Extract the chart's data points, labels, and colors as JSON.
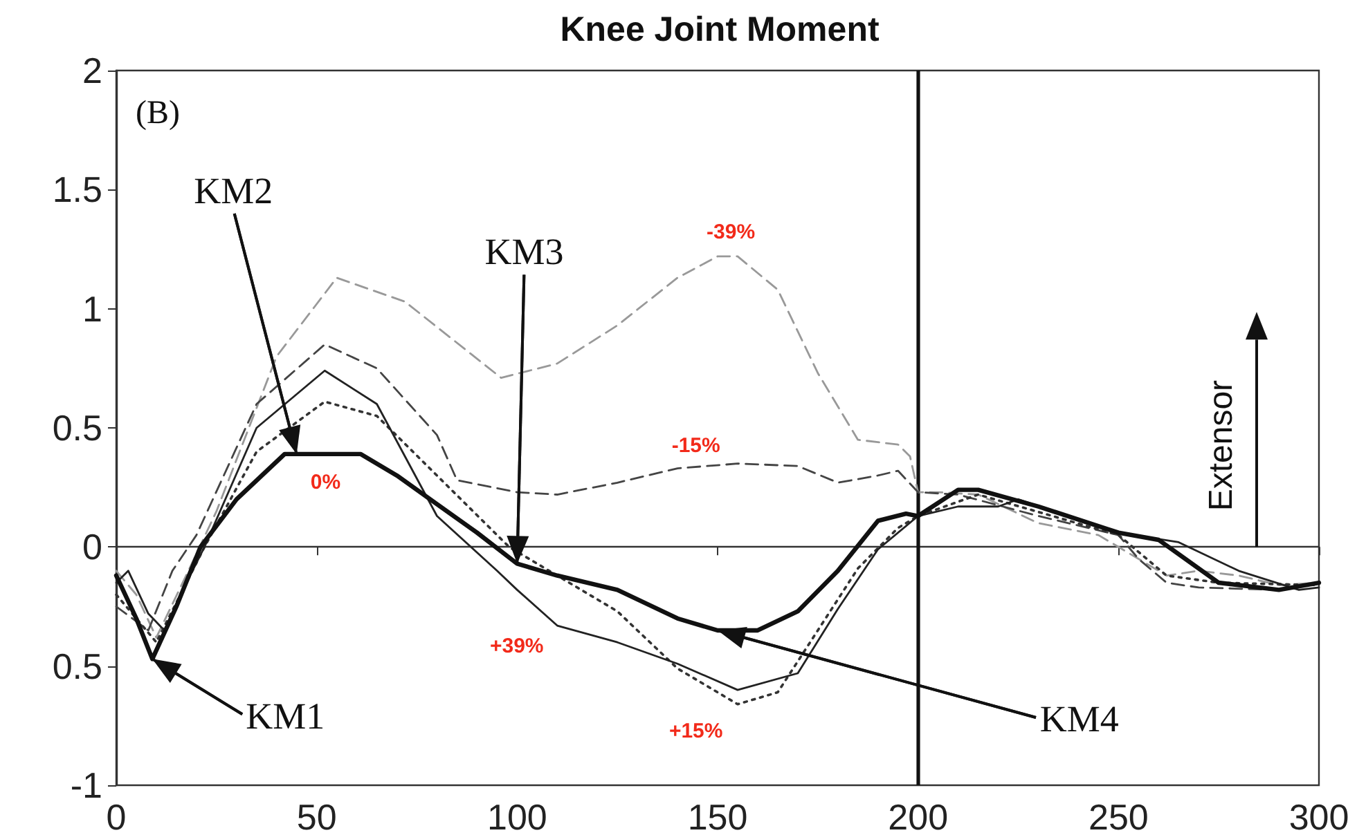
{
  "chart_data": {
    "type": "line",
    "title": "Knee Joint Moment",
    "x": [
      0,
      5,
      9,
      15,
      21,
      30,
      42,
      50,
      61,
      70,
      80,
      90,
      100,
      110,
      125,
      140,
      150,
      160,
      170,
      180,
      190,
      197,
      200,
      210,
      215,
      230,
      250,
      260,
      265,
      275,
      290,
      300
    ],
    "series": [
      {
        "color": "#111111",
        "line_style": "solid",
        "values": [
          -0.12,
          -0.3,
          -0.47,
          -0.25,
          0,
          0.2,
          0.39,
          0.39,
          0.39,
          0.3,
          0.18,
          0.06,
          -0.07,
          -0.12,
          -0.18,
          -0.3,
          -0.35,
          -0.35,
          -0.27,
          -0.1,
          0.11,
          0.14,
          0.13,
          0.24,
          0.24,
          0.17,
          0.06,
          0.03,
          -0.03,
          -0.15,
          -0.18,
          -0.15
        ]
      },
      {
        "x": [
          0,
          3,
          8,
          12,
          16,
          22,
          35,
          52,
          65,
          80,
          95,
          100,
          110,
          125,
          140,
          155,
          170,
          180,
          190,
          200,
          210,
          220,
          225,
          250,
          265,
          280,
          295,
          300
        ],
        "color": "#222222",
        "line_style": "solid",
        "values": [
          -0.15,
          -0.1,
          -0.28,
          -0.35,
          -0.2,
          0,
          0.5,
          0.74,
          0.6,
          0.13,
          -0.1,
          -0.18,
          -0.33,
          -0.4,
          -0.49,
          -0.6,
          -0.53,
          -0.26,
          -0.01,
          0.13,
          0.17,
          0.17,
          0.2,
          0.06,
          0.02,
          -0.1,
          -0.18,
          -0.17
        ]
      },
      {
        "x": [
          0,
          5,
          10,
          16,
          22,
          35,
          52,
          65,
          80,
          98,
          110,
          125,
          140,
          155,
          165,
          175,
          185,
          195,
          200,
          215,
          250,
          262,
          275,
          300
        ],
        "color": "#333333",
        "line_style": "dotted",
        "values": [
          -0.2,
          -0.3,
          -0.4,
          -0.2,
          0,
          0.4,
          0.61,
          0.55,
          0.3,
          0,
          -0.12,
          -0.27,
          -0.51,
          -0.66,
          -0.61,
          -0.35,
          -0.09,
          0.08,
          0.13,
          0.22,
          0.05,
          -0.12,
          -0.15,
          -0.16
        ]
      },
      {
        "x": [
          0,
          4,
          8,
          14,
          20,
          35,
          52,
          65,
          80,
          85,
          100,
          110,
          125,
          140,
          155,
          170,
          180,
          190,
          195,
          200,
          210,
          230,
          250,
          255,
          262,
          270,
          290,
          300
        ],
        "color": "#444444",
        "line_style": "dashed",
        "values": [
          -0.25,
          -0.3,
          -0.35,
          -0.1,
          0.05,
          0.6,
          0.85,
          0.75,
          0.47,
          0.28,
          0.23,
          0.22,
          0.27,
          0.33,
          0.35,
          0.34,
          0.27,
          0.3,
          0.32,
          0.23,
          0.22,
          0.13,
          0.05,
          -0.05,
          -0.15,
          -0.17,
          -0.18,
          -0.15
        ]
      },
      {
        "x": [
          0,
          5,
          10,
          18,
          25,
          40,
          55,
          72,
          96,
          110,
          125,
          140,
          150,
          155,
          165,
          175,
          185,
          195,
          198,
          200,
          205,
          215,
          230,
          245,
          255,
          262,
          270,
          280,
          290,
          300
        ],
        "color": "#999999",
        "line_style": "dashed",
        "values": [
          -0.1,
          -0.2,
          -0.38,
          -0.1,
          0.15,
          0.8,
          1.13,
          1.03,
          0.71,
          0.77,
          0.93,
          1.13,
          1.22,
          1.22,
          1.08,
          0.73,
          0.45,
          0.43,
          0.38,
          0.23,
          0.23,
          0.22,
          0.1,
          0.05,
          -0.05,
          -0.12,
          -0.1,
          -0.12,
          -0.16,
          -0.15
        ]
      }
    ],
    "xlim": [
      0,
      300
    ],
    "xticks": [
      0,
      50,
      100,
      150,
      200,
      250,
      300
    ],
    "ylim": [
      -1,
      2
    ],
    "yticks": [
      -1,
      {
        "value": -0.5,
        "label": "0.5"
      },
      0,
      0.5,
      1,
      1.5,
      2
    ],
    "ref_lines": [
      {
        "axis": "x",
        "value": 200,
        "color": "#111111",
        "line_style": "solid"
      }
    ],
    "marker": "none",
    "grid": false,
    "annotations": [
      "(B)",
      {
        "text": "KM1",
        "x": 9,
        "y": -0.47
      },
      {
        "text": "KM2",
        "x": 45,
        "y": 0.39
      },
      {
        "text": "KM3",
        "x": 100,
        "y": -0.07
      },
      {
        "text": "KM4",
        "x": 150,
        "y": -0.35
      },
      "0%",
      "-15%",
      "-39%",
      "+39%",
      "+15%",
      "Extensor"
    ]
  }
}
